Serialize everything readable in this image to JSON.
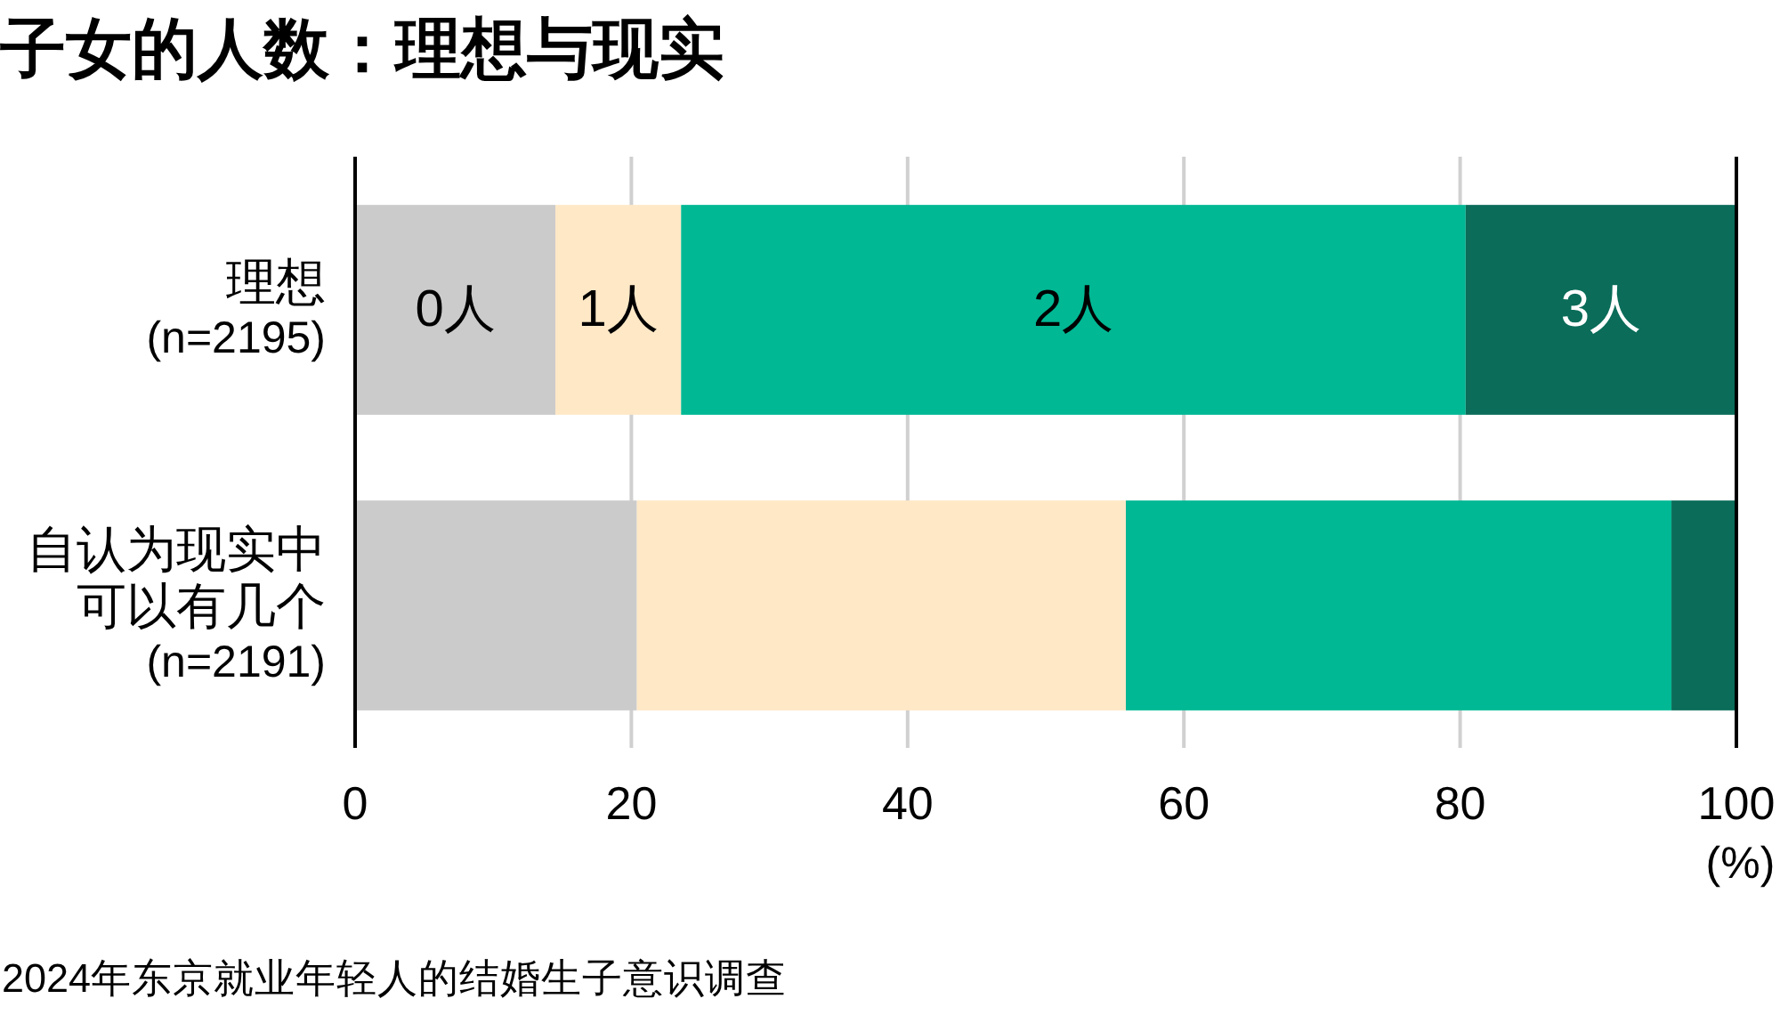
{
  "chart_data": {
    "type": "bar",
    "orientation": "horizontal",
    "stacked": true,
    "title": "子女的人数：理想与现实",
    "categories": [
      "理想 (n=2195)",
      "自认为现实中可以有几个 (n=2191)"
    ],
    "series": [
      {
        "name": "0人",
        "color": "#cbcbcb",
        "values": [
          14.5,
          20.4
        ]
      },
      {
        "name": "1人",
        "color": "#fee8c6",
        "values": [
          9.1,
          35.4
        ]
      },
      {
        "name": "2人",
        "color": "#00b894",
        "values": [
          56.8,
          39.5
        ]
      },
      {
        "name": "3人",
        "color": "#0a6c59",
        "values": [
          19.6,
          4.7
        ]
      }
    ],
    "xlim": [
      0,
      100
    ],
    "xticks": [
      0,
      20,
      40,
      60,
      80,
      100
    ],
    "xlabel": "(%)",
    "grid": "x",
    "annotations": [
      "2024年东京就业年轻人的结婚生子意识调查"
    ]
  }
}
